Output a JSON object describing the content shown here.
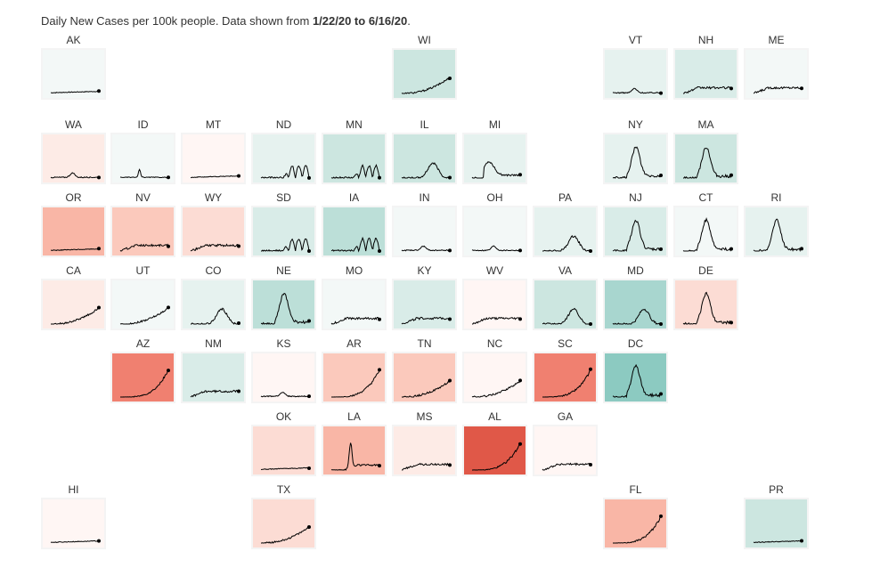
{
  "header": {
    "prefix": "Daily New Cases per 100k people. Data shown from ",
    "start": "1/22/20",
    "mid": " to ",
    "end": "6/16/20",
    "suffix": "."
  },
  "colors": {
    "tile_border": "#f4f4f4",
    "line": "#000000",
    "teal_scale": [
      "#f3f8f7",
      "#e6f2ef",
      "#d9ece8",
      "#cce6e0",
      "#bcdfd8",
      "#a8d6cf",
      "#8ccac1"
    ],
    "red_scale": [
      "#fff6f4",
      "#fdebe6",
      "#fcdcd4",
      "#fbc9bc",
      "#f9b6a6",
      "#f08070",
      "#e05848"
    ]
  },
  "chart_data": {
    "type": "small-multiples-line",
    "title": "Daily New Cases per 100k people. Data shown from 1/22/20 to 6/16/20.",
    "x_range": [
      "1/22/20",
      "6/16/20"
    ],
    "states": [
      {
        "code": "AK",
        "row": 0,
        "col": 0,
        "tint": "teal",
        "level": 0,
        "shape": "flat"
      },
      {
        "code": "WI",
        "row": 0,
        "col": 5,
        "tint": "teal",
        "level": 3,
        "shape": "rise"
      },
      {
        "code": "VT",
        "row": 0,
        "col": 8,
        "tint": "teal",
        "level": 1,
        "shape": "bump"
      },
      {
        "code": "NH",
        "row": 0,
        "col": 9,
        "tint": "teal",
        "level": 2,
        "shape": "plateau"
      },
      {
        "code": "ME",
        "row": 0,
        "col": 10,
        "tint": "teal",
        "level": 0,
        "shape": "plateau"
      },
      {
        "code": "WA",
        "row": 1,
        "col": 0,
        "tint": "red",
        "level": 1,
        "shape": "bump"
      },
      {
        "code": "ID",
        "row": 1,
        "col": 1,
        "tint": "teal",
        "level": 0,
        "shape": "spike"
      },
      {
        "code": "MT",
        "row": 1,
        "col": 2,
        "tint": "red",
        "level": 0,
        "shape": "flat"
      },
      {
        "code": "ND",
        "row": 1,
        "col": 3,
        "tint": "teal",
        "level": 1,
        "shape": "noisy"
      },
      {
        "code": "MN",
        "row": 1,
        "col": 4,
        "tint": "teal",
        "level": 3,
        "shape": "noisy"
      },
      {
        "code": "IL",
        "row": 1,
        "col": 5,
        "tint": "teal",
        "level": 3,
        "shape": "peak"
      },
      {
        "code": "MI",
        "row": 1,
        "col": 6,
        "tint": "teal",
        "level": 1,
        "shape": "early"
      },
      {
        "code": "NY",
        "row": 1,
        "col": 8,
        "tint": "teal",
        "level": 1,
        "shape": "bigpeak"
      },
      {
        "code": "MA",
        "row": 1,
        "col": 9,
        "tint": "teal",
        "level": 3,
        "shape": "bigpeak"
      },
      {
        "code": "OR",
        "row": 2,
        "col": 0,
        "tint": "red",
        "level": 4,
        "shape": "flat"
      },
      {
        "code": "NV",
        "row": 2,
        "col": 1,
        "tint": "red",
        "level": 3,
        "shape": "plateau"
      },
      {
        "code": "WY",
        "row": 2,
        "col": 2,
        "tint": "red",
        "level": 2,
        "shape": "plateau"
      },
      {
        "code": "SD",
        "row": 2,
        "col": 3,
        "tint": "teal",
        "level": 2,
        "shape": "noisy"
      },
      {
        "code": "IA",
        "row": 2,
        "col": 4,
        "tint": "teal",
        "level": 4,
        "shape": "noisy"
      },
      {
        "code": "IN",
        "row": 2,
        "col": 5,
        "tint": "teal",
        "level": 0,
        "shape": "bump"
      },
      {
        "code": "OH",
        "row": 2,
        "col": 6,
        "tint": "teal",
        "level": 0,
        "shape": "bump"
      },
      {
        "code": "PA",
        "row": 2,
        "col": 7,
        "tint": "teal",
        "level": 1,
        "shape": "peak"
      },
      {
        "code": "NJ",
        "row": 2,
        "col": 8,
        "tint": "teal",
        "level": 2,
        "shape": "bigpeak"
      },
      {
        "code": "CT",
        "row": 2,
        "col": 9,
        "tint": "teal",
        "level": 0,
        "shape": "bigpeak"
      },
      {
        "code": "RI",
        "row": 2,
        "col": 10,
        "tint": "teal",
        "level": 1,
        "shape": "bigpeak"
      },
      {
        "code": "CA",
        "row": 3,
        "col": 0,
        "tint": "red",
        "level": 1,
        "shape": "rise"
      },
      {
        "code": "UT",
        "row": 3,
        "col": 1,
        "tint": "teal",
        "level": 0,
        "shape": "rise"
      },
      {
        "code": "CO",
        "row": 3,
        "col": 2,
        "tint": "teal",
        "level": 1,
        "shape": "peak"
      },
      {
        "code": "NE",
        "row": 3,
        "col": 3,
        "tint": "teal",
        "level": 4,
        "shape": "bigpeak"
      },
      {
        "code": "MO",
        "row": 3,
        "col": 4,
        "tint": "teal",
        "level": 0,
        "shape": "plateau"
      },
      {
        "code": "KY",
        "row": 3,
        "col": 5,
        "tint": "teal",
        "level": 2,
        "shape": "plateau"
      },
      {
        "code": "WV",
        "row": 3,
        "col": 6,
        "tint": "red",
        "level": 0,
        "shape": "plateau"
      },
      {
        "code": "VA",
        "row": 3,
        "col": 7,
        "tint": "teal",
        "level": 3,
        "shape": "peak"
      },
      {
        "code": "MD",
        "row": 3,
        "col": 8,
        "tint": "teal",
        "level": 5,
        "shape": "peak"
      },
      {
        "code": "DE",
        "row": 3,
        "col": 9,
        "tint": "red",
        "level": 2,
        "shape": "bigpeak"
      },
      {
        "code": "AZ",
        "row": 4,
        "col": 1,
        "tint": "red",
        "level": 5,
        "shape": "surge"
      },
      {
        "code": "NM",
        "row": 4,
        "col": 2,
        "tint": "teal",
        "level": 2,
        "shape": "plateau"
      },
      {
        "code": "KS",
        "row": 4,
        "col": 3,
        "tint": "red",
        "level": 0,
        "shape": "bump"
      },
      {
        "code": "AR",
        "row": 4,
        "col": 4,
        "tint": "red",
        "level": 3,
        "shape": "surge"
      },
      {
        "code": "TN",
        "row": 4,
        "col": 5,
        "tint": "red",
        "level": 3,
        "shape": "rise"
      },
      {
        "code": "NC",
        "row": 4,
        "col": 6,
        "tint": "red",
        "level": 0,
        "shape": "rise"
      },
      {
        "code": "SC",
        "row": 4,
        "col": 7,
        "tint": "red",
        "level": 5,
        "shape": "surge"
      },
      {
        "code": "DC",
        "row": 4,
        "col": 8,
        "tint": "teal",
        "level": 6,
        "shape": "bigpeak"
      },
      {
        "code": "OK",
        "row": 5,
        "col": 3,
        "tint": "red",
        "level": 2,
        "shape": "flat"
      },
      {
        "code": "LA",
        "row": 5,
        "col": 4,
        "tint": "red",
        "level": 4,
        "shape": "laspike"
      },
      {
        "code": "MS",
        "row": 5,
        "col": 5,
        "tint": "red",
        "level": 1,
        "shape": "plateau"
      },
      {
        "code": "AL",
        "row": 5,
        "col": 6,
        "tint": "red",
        "level": 6,
        "shape": "surge"
      },
      {
        "code": "GA",
        "row": 5,
        "col": 7,
        "tint": "red",
        "level": 0,
        "shape": "plateau"
      },
      {
        "code": "HI",
        "row": 6,
        "col": 0,
        "tint": "red",
        "level": 0,
        "shape": "flat"
      },
      {
        "code": "TX",
        "row": 6,
        "col": 3,
        "tint": "red",
        "level": 2,
        "shape": "rise"
      },
      {
        "code": "FL",
        "row": 6,
        "col": 8,
        "tint": "red",
        "level": 4,
        "shape": "surge"
      },
      {
        "code": "PR",
        "row": 6,
        "col": 10,
        "tint": "teal",
        "level": 3,
        "shape": "flat"
      }
    ]
  }
}
